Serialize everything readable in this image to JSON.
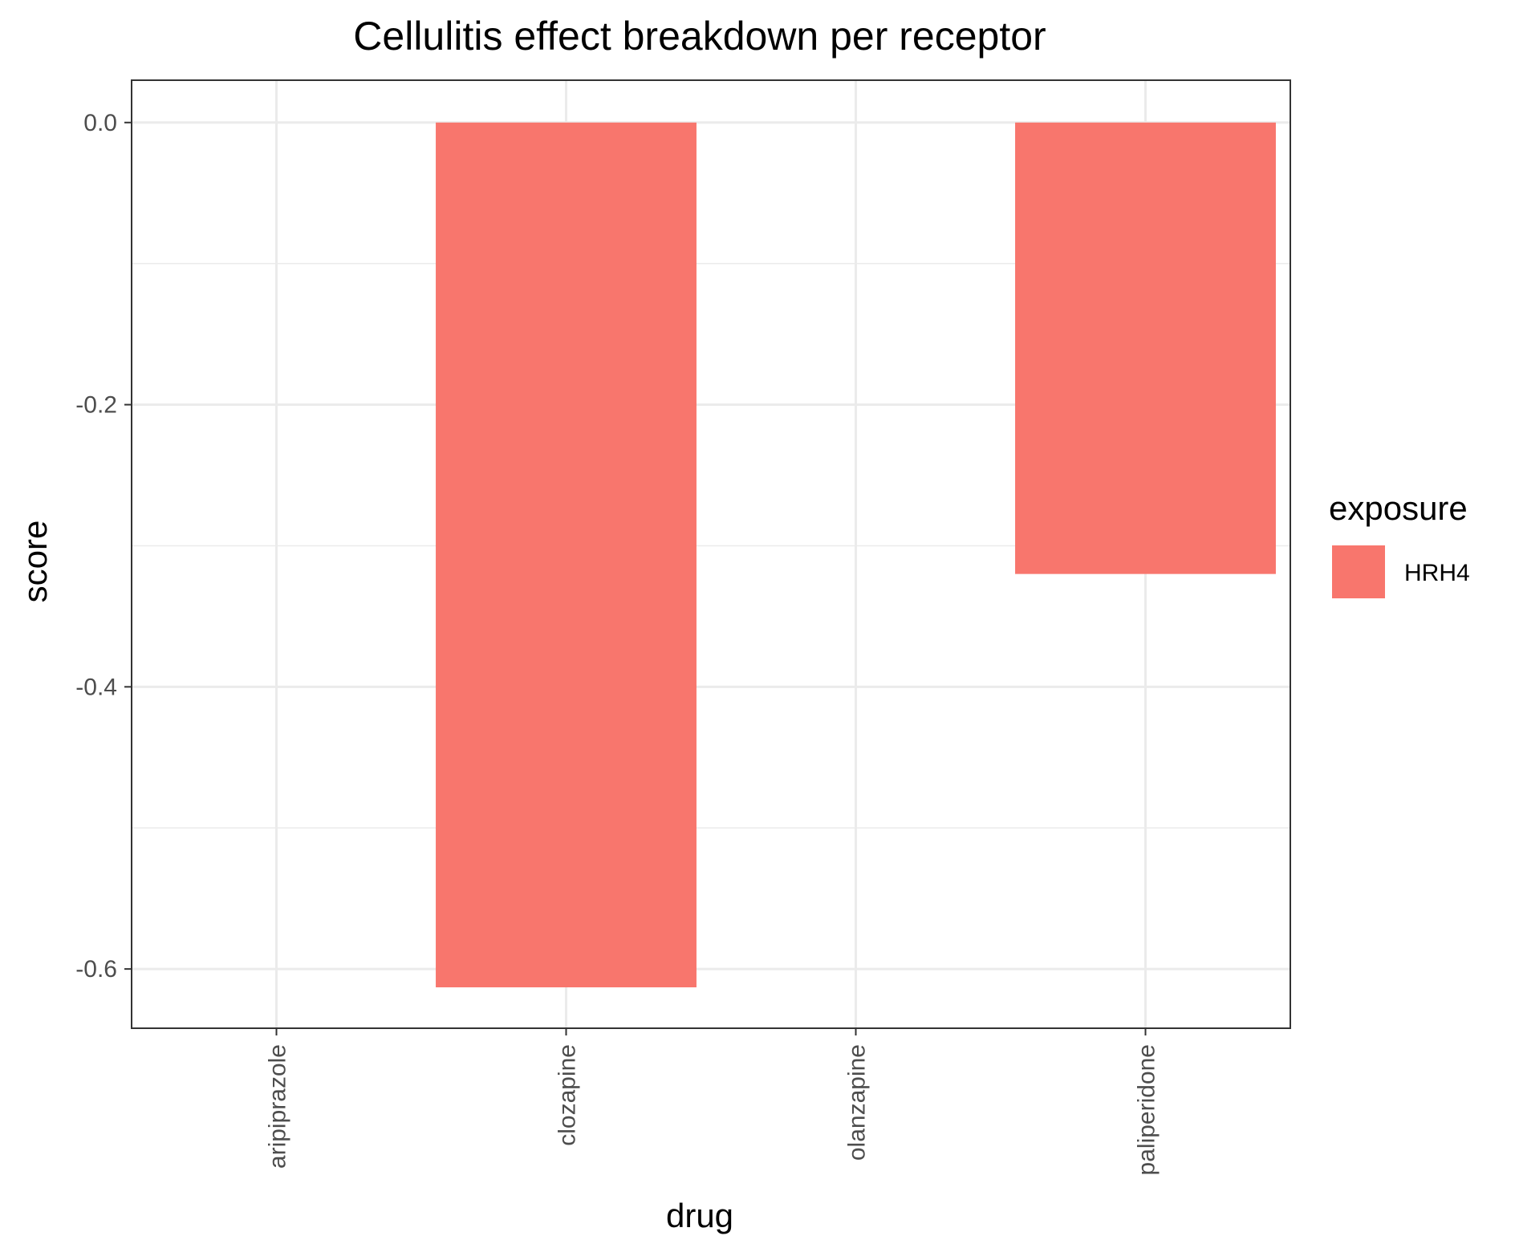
{
  "chart_data": {
    "type": "bar",
    "title": "Cellulitis effect breakdown per receptor",
    "xlabel": "drug",
    "ylabel": "score",
    "categories": [
      "aripiprazole",
      "clozapine",
      "olanzapine",
      "paliperidone"
    ],
    "series": [
      {
        "name": "HRH4",
        "color": "#F8766D",
        "values": [
          null,
          -0.613,
          null,
          -0.32
        ]
      }
    ],
    "ylim": [
      -0.642,
      0.03
    ],
    "yticks": [
      0.0,
      -0.2,
      -0.4,
      -0.6
    ],
    "ytick_labels": [
      "0.0",
      "-0.2",
      "-0.4",
      "-0.6"
    ],
    "grid": true,
    "legend": {
      "title": "exposure",
      "position": "right"
    }
  }
}
